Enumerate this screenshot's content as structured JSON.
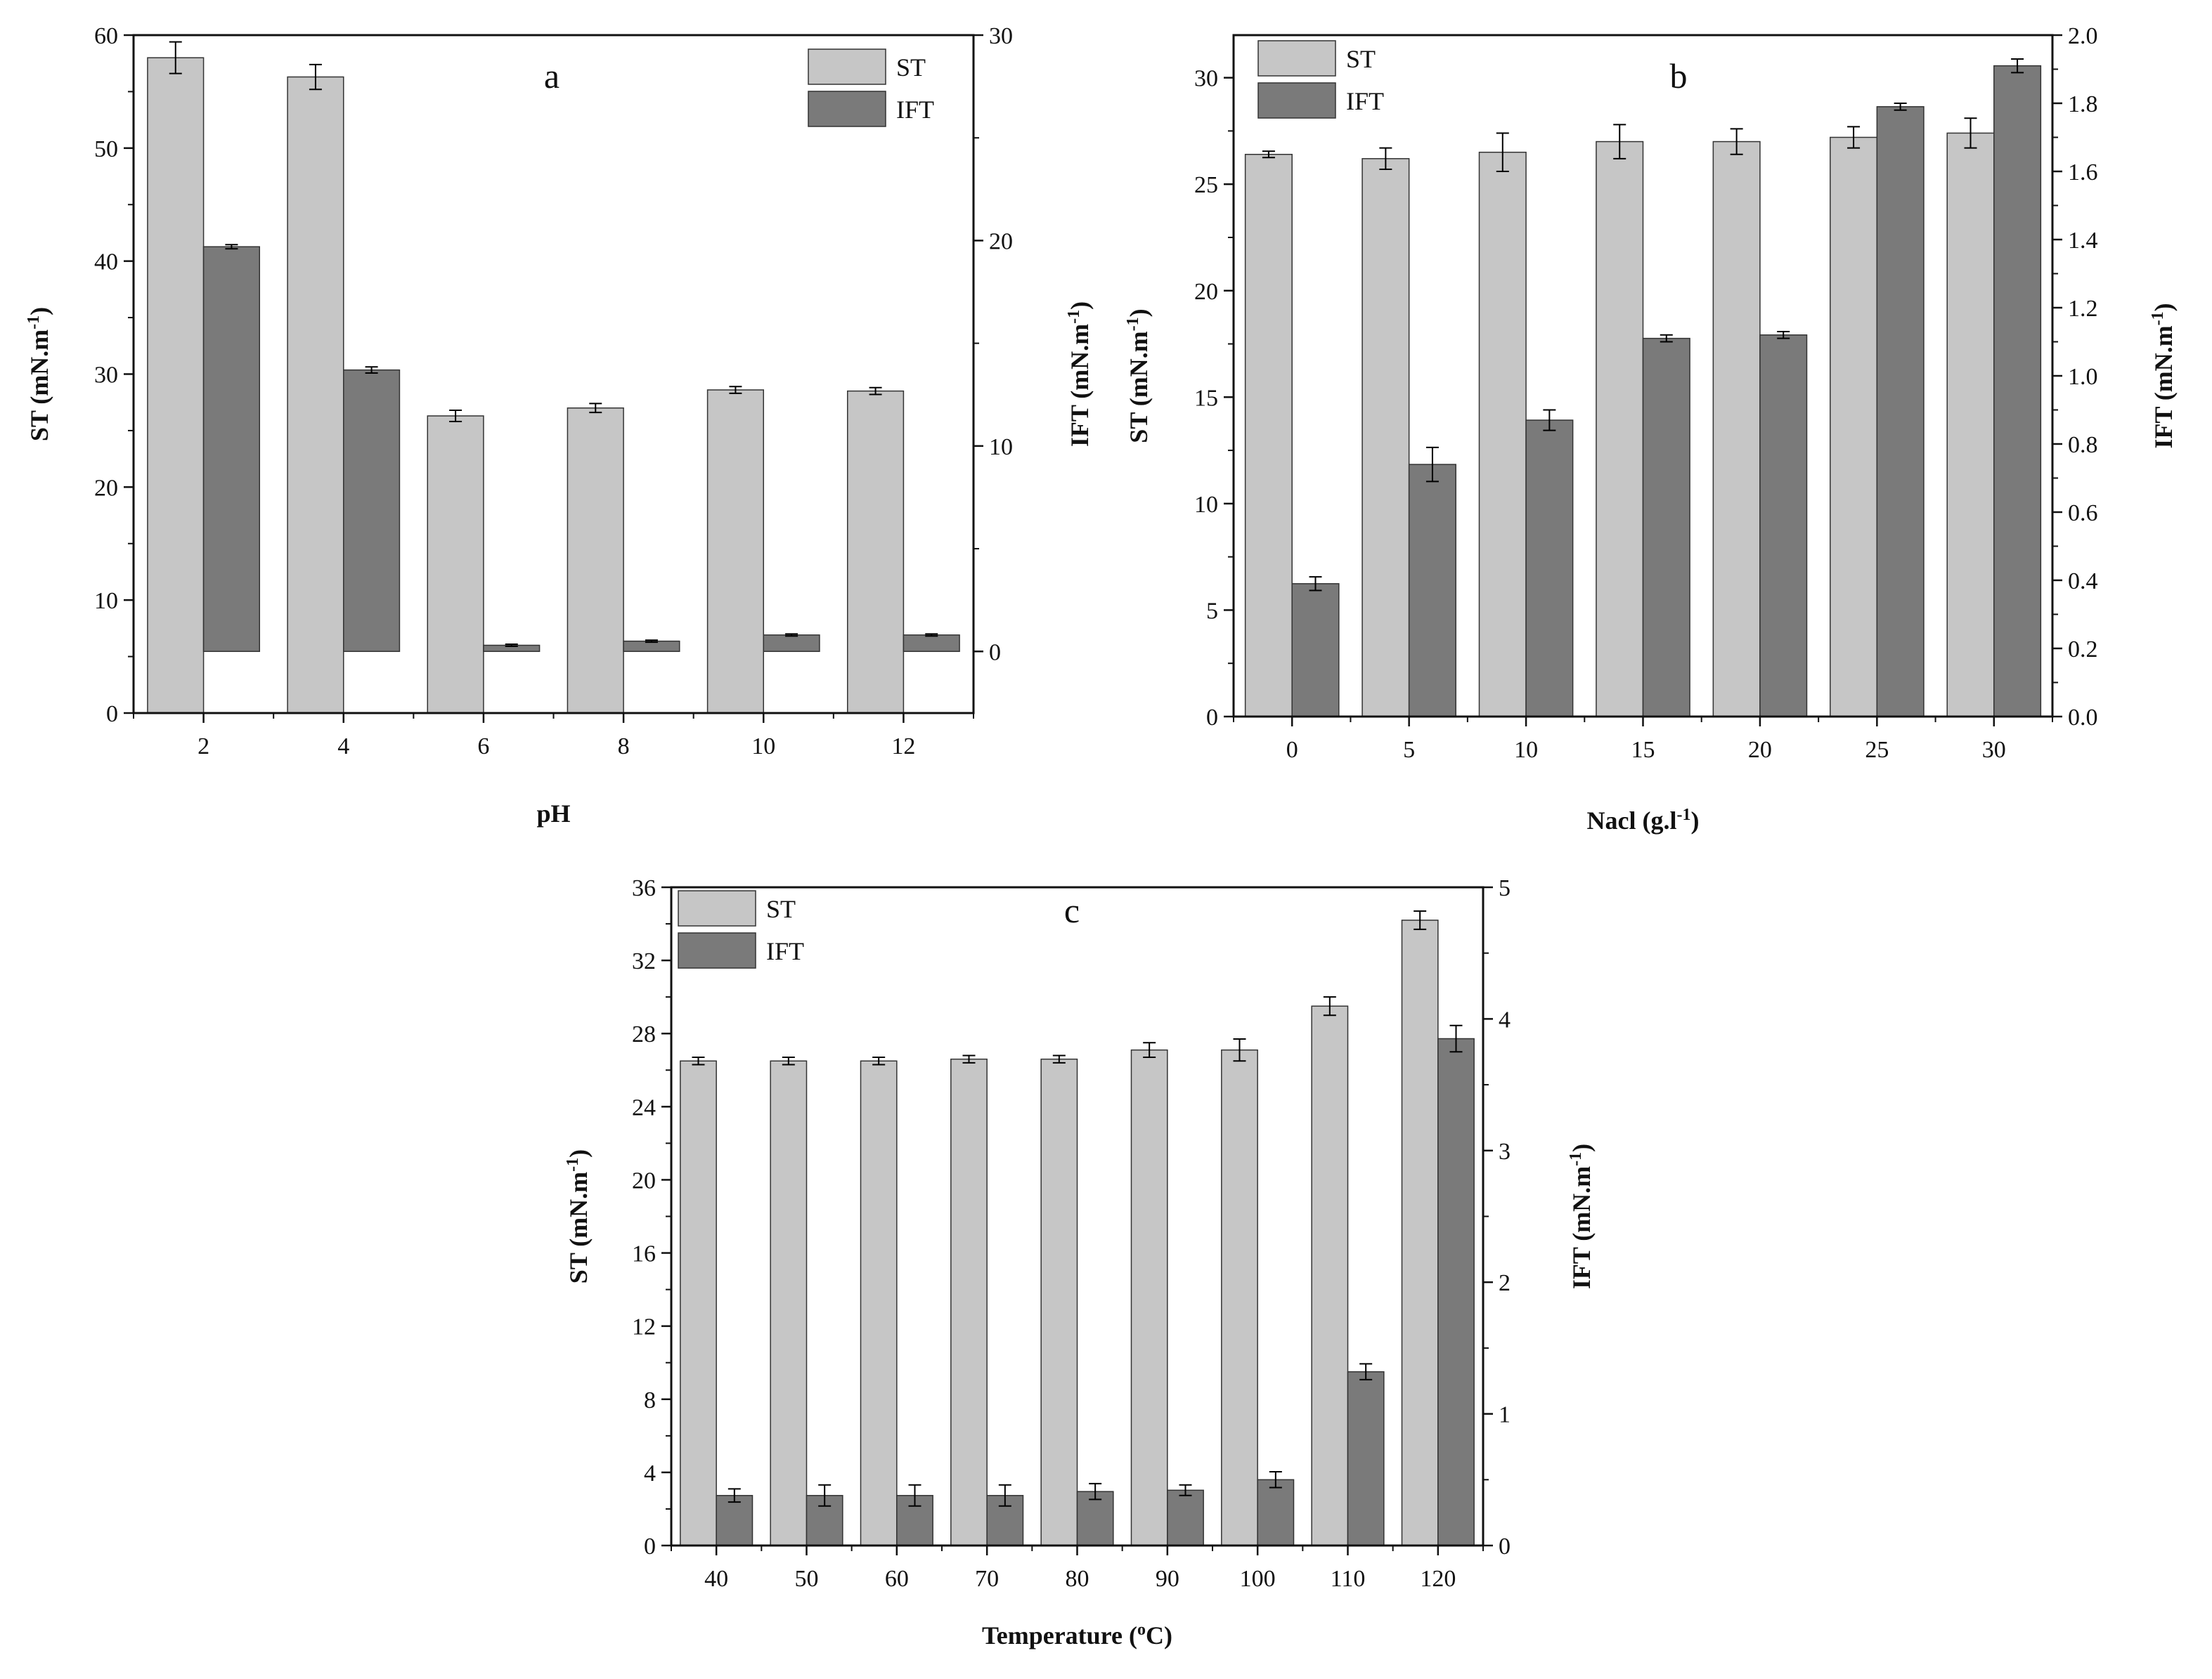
{
  "colors": {
    "st": "#c6c6c6",
    "ift": "#7a7a7a",
    "axis": "#111111",
    "stroke": "#333333"
  },
  "chart_data": [
    {
      "id": "a",
      "type": "bar",
      "panel_label": "a",
      "title": "",
      "xlabel": "pH",
      "ylabel_left": "ST (mN.m",
      "ylabel_right": "IFT (mN.m",
      "ylabel_sup": "-1",
      "ylabel_close": ")",
      "categories": [
        "2",
        "4",
        "6",
        "8",
        "10",
        "12"
      ],
      "left_axis": {
        "min": 0,
        "max": 60,
        "ticks": [
          0,
          10,
          20,
          30,
          40,
          50,
          60
        ]
      },
      "right_axis": {
        "min": -3,
        "max": 30,
        "ticks": [
          0,
          10,
          20,
          30
        ]
      },
      "legend": {
        "position": "top-right",
        "entries": [
          "ST",
          "IFT"
        ]
      },
      "series": [
        {
          "name": "ST",
          "axis": "left",
          "values": [
            58.0,
            56.3,
            26.3,
            27.0,
            28.6,
            28.5
          ],
          "errors": [
            1.4,
            1.1,
            0.5,
            0.4,
            0.3,
            0.3
          ]
        },
        {
          "name": "IFT",
          "axis": "right",
          "values": [
            19.7,
            13.7,
            0.3,
            0.5,
            0.8,
            0.8
          ],
          "errors": [
            0.1,
            0.15,
            0.05,
            0.05,
            0.05,
            0.05
          ]
        }
      ]
    },
    {
      "id": "b",
      "type": "bar",
      "panel_label": "b",
      "title": "",
      "xlabel": "Nacl (g.l",
      "xlabel_sup": "-1",
      "xlabel_close": ")",
      "ylabel_left": "ST (mN.m",
      "ylabel_right": "IFT (mN.m",
      "ylabel_sup": "-1",
      "ylabel_close": ")",
      "categories": [
        "0",
        "5",
        "10",
        "15",
        "20",
        "25",
        "30"
      ],
      "left_axis": {
        "min": 0,
        "max": 32,
        "ticks": [
          0,
          5,
          10,
          15,
          20,
          25,
          30
        ]
      },
      "right_axis": {
        "min": 0,
        "max": 2.0,
        "ticks": [
          0.0,
          0.2,
          0.4,
          0.6,
          0.8,
          1.0,
          1.2,
          1.4,
          1.6,
          1.8,
          2.0
        ]
      },
      "legend": {
        "position": "top-left",
        "entries": [
          "ST",
          "IFT"
        ]
      },
      "series": [
        {
          "name": "ST",
          "axis": "left",
          "values": [
            26.4,
            26.2,
            26.5,
            27.0,
            27.0,
            27.2,
            27.4
          ],
          "errors": [
            0.15,
            0.5,
            0.9,
            0.8,
            0.6,
            0.5,
            0.7
          ]
        },
        {
          "name": "IFT",
          "axis": "right",
          "values": [
            0.39,
            0.74,
            0.87,
            1.11,
            1.12,
            1.79,
            1.91
          ],
          "errors": [
            0.02,
            0.05,
            0.03,
            0.01,
            0.01,
            0.01,
            0.02
          ]
        }
      ]
    },
    {
      "id": "c",
      "type": "bar",
      "panel_label": "c",
      "title": "",
      "xlabel": "Temperature (",
      "xlabel_sup": "o",
      "xlabel_close": "C)",
      "ylabel_left": "ST (mN.m",
      "ylabel_right": "IFT (mN.m",
      "ylabel_sup": "-1",
      "ylabel_close": ")",
      "categories": [
        "40",
        "50",
        "60",
        "70",
        "80",
        "90",
        "100",
        "110",
        "120"
      ],
      "left_axis": {
        "min": 0,
        "max": 36,
        "ticks": [
          0,
          4,
          8,
          12,
          16,
          20,
          24,
          28,
          32,
          36
        ]
      },
      "right_axis": {
        "min": 0,
        "max": 5,
        "ticks": [
          0,
          1,
          2,
          3,
          4,
          5
        ]
      },
      "legend": {
        "position": "top-left",
        "entries": [
          "ST",
          "IFT"
        ]
      },
      "series": [
        {
          "name": "ST",
          "axis": "left",
          "values": [
            26.5,
            26.5,
            26.5,
            26.6,
            26.6,
            27.1,
            27.1,
            29.5,
            34.2
          ],
          "errors": [
            0.2,
            0.2,
            0.2,
            0.2,
            0.2,
            0.4,
            0.6,
            0.5,
            0.5
          ]
        },
        {
          "name": "IFT",
          "axis": "right",
          "values": [
            0.38,
            0.38,
            0.38,
            0.38,
            0.41,
            0.42,
            0.5,
            1.32,
            3.85
          ],
          "errors": [
            0.05,
            0.08,
            0.08,
            0.08,
            0.06,
            0.04,
            0.06,
            0.06,
            0.1
          ]
        }
      ]
    }
  ]
}
